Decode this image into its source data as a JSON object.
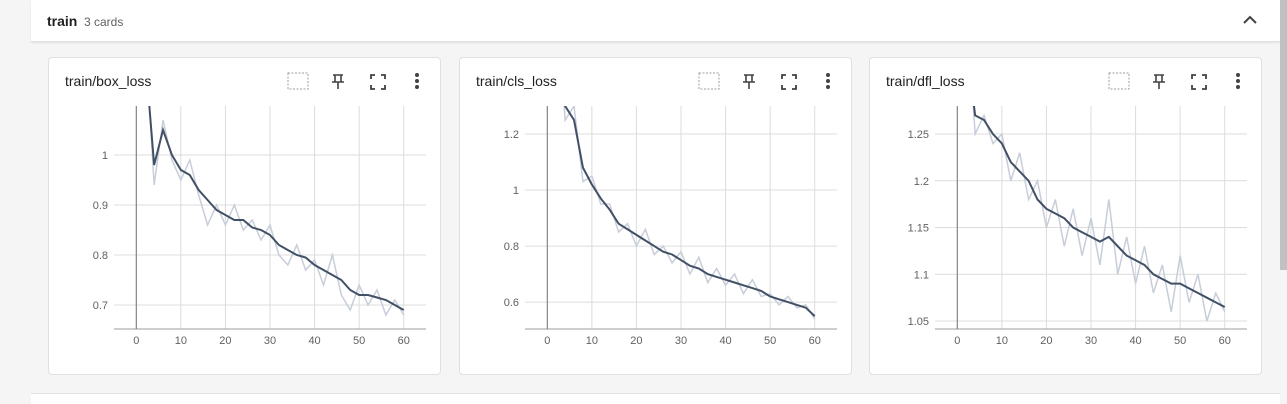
{
  "header": {
    "title": "train",
    "count": "3 cards"
  },
  "chart_data": [
    {
      "type": "line",
      "title": "train/box_loss",
      "x": [
        2,
        4,
        6,
        8,
        10,
        12,
        14,
        16,
        18,
        20,
        22,
        24,
        26,
        28,
        30,
        32,
        34,
        36,
        38,
        40,
        42,
        44,
        46,
        48,
        50,
        52,
        54,
        56,
        58,
        60
      ],
      "series": [
        {
          "color": "#c7cdd9",
          "values": [
            1.25,
            0.94,
            1.07,
            0.99,
            0.95,
            0.99,
            0.92,
            0.86,
            0.9,
            0.86,
            0.9,
            0.85,
            0.87,
            0.83,
            0.86,
            0.8,
            0.78,
            0.82,
            0.77,
            0.79,
            0.74,
            0.8,
            0.72,
            0.69,
            0.74,
            0.7,
            0.73,
            0.68,
            0.71,
            0.68
          ]
        },
        {
          "color": "#425066",
          "values": [
            1.2,
            0.98,
            1.05,
            1.0,
            0.97,
            0.96,
            0.93,
            0.91,
            0.89,
            0.88,
            0.87,
            0.87,
            0.855,
            0.85,
            0.84,
            0.82,
            0.81,
            0.8,
            0.795,
            0.78,
            0.77,
            0.76,
            0.75,
            0.73,
            0.72,
            0.72,
            0.715,
            0.71,
            0.7,
            0.69
          ]
        }
      ],
      "xlim": [
        -5,
        65
      ],
      "ylim": [
        0.652,
        1.098
      ],
      "xticks": [
        0,
        10,
        20,
        30,
        40,
        50,
        60
      ],
      "yticks": [
        0.7,
        0.8,
        0.9,
        1
      ],
      "grid": true
    },
    {
      "type": "line",
      "title": "train/cls_loss",
      "x": [
        2,
        4,
        6,
        8,
        10,
        12,
        14,
        16,
        18,
        20,
        22,
        24,
        26,
        28,
        30,
        32,
        34,
        36,
        38,
        40,
        42,
        44,
        46,
        48,
        50,
        52,
        54,
        56,
        58,
        60
      ],
      "series": [
        {
          "color": "#c7cdd9",
          "values": [
            1.7,
            1.25,
            1.3,
            1.03,
            1.05,
            0.95,
            0.95,
            0.85,
            0.88,
            0.8,
            0.86,
            0.77,
            0.8,
            0.74,
            0.78,
            0.7,
            0.76,
            0.67,
            0.72,
            0.66,
            0.7,
            0.63,
            0.68,
            0.62,
            0.63,
            0.59,
            0.62,
            0.58,
            0.59,
            0.54
          ]
        },
        {
          "color": "#425066",
          "values": [
            1.6,
            1.3,
            1.25,
            1.08,
            1.02,
            0.97,
            0.93,
            0.88,
            0.86,
            0.84,
            0.82,
            0.8,
            0.78,
            0.77,
            0.75,
            0.73,
            0.72,
            0.7,
            0.69,
            0.68,
            0.67,
            0.66,
            0.65,
            0.64,
            0.62,
            0.61,
            0.6,
            0.59,
            0.58,
            0.55
          ]
        }
      ],
      "xlim": [
        -5,
        65
      ],
      "ylim": [
        0.504,
        1.3
      ],
      "xticks": [
        0,
        10,
        20,
        30,
        40,
        50,
        60
      ],
      "yticks": [
        0.6,
        0.8,
        1,
        1.2
      ],
      "grid": true
    },
    {
      "type": "line",
      "title": "train/dfl_loss",
      "x": [
        2,
        4,
        6,
        8,
        10,
        12,
        14,
        16,
        18,
        20,
        22,
        24,
        26,
        28,
        30,
        32,
        34,
        36,
        38,
        40,
        42,
        44,
        46,
        48,
        50,
        52,
        54,
        56,
        58,
        60
      ],
      "series": [
        {
          "color": "#c7cdd9",
          "values": [
            1.4,
            1.25,
            1.27,
            1.24,
            1.25,
            1.2,
            1.23,
            1.18,
            1.2,
            1.15,
            1.18,
            1.13,
            1.17,
            1.12,
            1.16,
            1.11,
            1.18,
            1.1,
            1.14,
            1.09,
            1.13,
            1.08,
            1.11,
            1.06,
            1.12,
            1.07,
            1.1,
            1.05,
            1.08,
            1.06
          ]
        },
        {
          "color": "#425066",
          "values": [
            1.35,
            1.27,
            1.265,
            1.25,
            1.24,
            1.22,
            1.21,
            1.2,
            1.18,
            1.17,
            1.165,
            1.16,
            1.15,
            1.145,
            1.14,
            1.135,
            1.14,
            1.13,
            1.12,
            1.115,
            1.11,
            1.1,
            1.095,
            1.09,
            1.09,
            1.085,
            1.08,
            1.075,
            1.07,
            1.065
          ]
        }
      ],
      "xlim": [
        -5,
        65
      ],
      "ylim": [
        1.0415,
        1.28
      ],
      "xticks": [
        0,
        10,
        20,
        30,
        40,
        50,
        60
      ],
      "yticks": [
        1.05,
        1.1,
        1.15,
        1.2,
        1.25
      ],
      "grid": true
    }
  ]
}
